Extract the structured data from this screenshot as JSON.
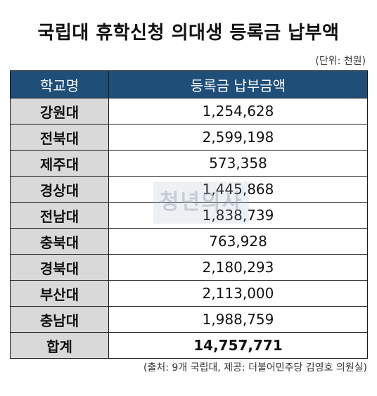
{
  "title": "국립대 휴학신청 의대생 등록금 납부액",
  "unit": "(단위: 천원)",
  "table": {
    "headers": [
      "학교명",
      "등록금 납부금액"
    ],
    "rows": [
      {
        "school": "강원대",
        "amount": "1,254,628"
      },
      {
        "school": "전북대",
        "amount": "2,599,198"
      },
      {
        "school": "제주대",
        "amount": "573,358"
      },
      {
        "school": "경상대",
        "amount": "1,445,868"
      },
      {
        "school": "전남대",
        "amount": "1,838,739"
      },
      {
        "school": "충북대",
        "amount": "763,928"
      },
      {
        "school": "경북대",
        "amount": "2,180,293"
      },
      {
        "school": "부산대",
        "amount": "2,113,000"
      },
      {
        "school": "충남대",
        "amount": "1,988,759"
      }
    ],
    "total": {
      "label": "합계",
      "amount": "14,757,771"
    }
  },
  "watermark": "청년의사",
  "source": "(출처: 9개 국립대, 제공: 더불어민주당 김영호 의원실)",
  "colors": {
    "header_bg": "#1f4e79",
    "name_cell_bg": "#d9d9d9"
  }
}
